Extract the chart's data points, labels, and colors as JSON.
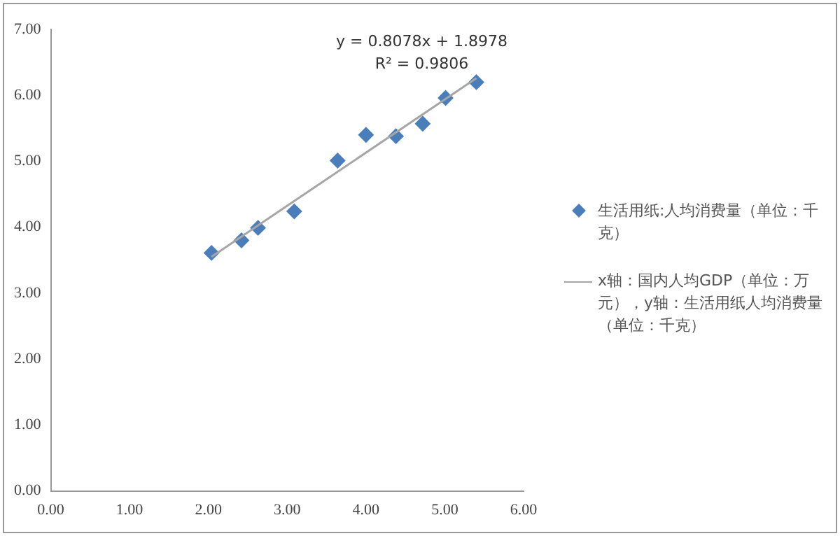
{
  "chart_data": {
    "type": "scatter",
    "grid": false,
    "legend": "right",
    "marker": "diamond",
    "xlim": [
      0,
      6
    ],
    "xticks": [
      {
        "value": 0,
        "label": "0.00"
      },
      {
        "value": 1,
        "label": "1.00"
      },
      {
        "value": 2,
        "label": "2.00"
      },
      {
        "value": 3,
        "label": "3.00"
      },
      {
        "value": 4,
        "label": "4.00"
      },
      {
        "value": 5,
        "label": "5.00"
      },
      {
        "value": 6,
        "label": "6.00"
      }
    ],
    "ylim": [
      0,
      7
    ],
    "yticks": [
      {
        "value": 0,
        "label": "0.00"
      },
      {
        "value": 1,
        "label": "1.00"
      },
      {
        "value": 2,
        "label": "2.00"
      },
      {
        "value": 3,
        "label": "3.00"
      },
      {
        "value": 4,
        "label": "4.00"
      },
      {
        "value": 5,
        "label": "5.00"
      },
      {
        "value": 6,
        "label": "6.00"
      },
      {
        "value": 7,
        "label": "7.00"
      }
    ],
    "series": [
      {
        "name": "生活用纸:人均消费量（单位：千克）",
        "color": "#4a7ebb",
        "x": [
          2.04,
          2.42,
          2.63,
          3.09,
          3.64,
          4.0,
          4.38,
          4.72,
          5.01,
          5.4
        ],
        "values": [
          3.61,
          3.8,
          3.99,
          4.24,
          5.01,
          5.4,
          5.38,
          5.57,
          5.96,
          6.2
        ]
      },
      {
        "name": "x轴：国内人均GDP（单位：万元），y轴：生活用纸人均消费量（单位：千克）",
        "type": "line",
        "color": "#a6a6a6",
        "line_style": "solid",
        "marker": "none",
        "x": [
          2.04,
          5.4
        ],
        "values": [
          3.55,
          6.26
        ]
      }
    ],
    "annotations": [
      "y = 0.8078x + 1.8978",
      "R² = 0.9806"
    ]
  }
}
